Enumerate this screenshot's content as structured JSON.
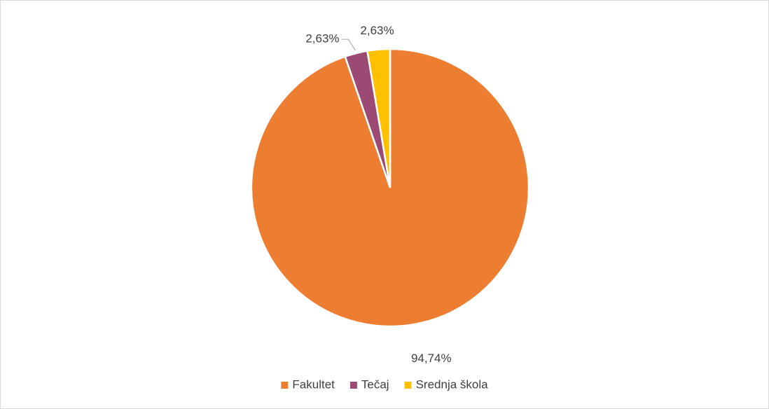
{
  "chart_data": {
    "type": "pie",
    "categories": [
      "Fakultet",
      "Tečaj",
      "Srednja škola"
    ],
    "values": [
      94.74,
      2.63,
      2.63
    ],
    "value_labels": [
      "94,74%",
      "2,63%",
      "2,63%"
    ],
    "colors": [
      "#ED7D31",
      "#9B4A73",
      "#FFC000"
    ],
    "legend": "bottom"
  }
}
